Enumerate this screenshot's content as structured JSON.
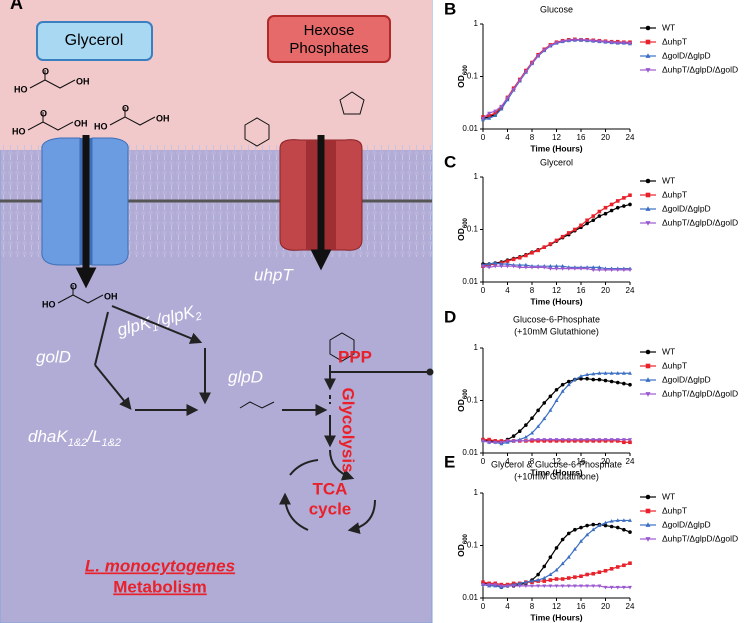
{
  "diagram": {
    "panel": "A",
    "substrate_1": "Glycerol",
    "substrate_2": [
      "Hexose",
      "Phosphates"
    ],
    "transporter": "uhpT",
    "enzyme_1": [
      "glpK",
      "1",
      "/glpK",
      "2"
    ],
    "enzyme_2": "golD",
    "enzyme_3": "glpD",
    "enzyme_4": [
      "dhaK",
      "1&2",
      "/L",
      "1&2"
    ],
    "pathway_1": "PPP",
    "pathway_2": "Glycolysis",
    "pathway_3": [
      "TCA",
      "cycle"
    ],
    "caption": [
      "L. monocytogenes",
      "Metabolism"
    ],
    "atoms": [
      "HO",
      "O",
      "OH"
    ]
  },
  "chart_data": [
    {
      "type": "line",
      "panel": "B",
      "title": "Glucose",
      "x_label": "Time (Hours)",
      "y_label": "OD",
      "y_label_sub": "600",
      "log_y": true,
      "x": [
        0,
        1,
        2,
        3,
        4,
        5,
        6,
        7,
        8,
        9,
        10,
        11,
        12,
        13,
        14,
        15,
        16,
        17,
        18,
        19,
        20,
        21,
        22,
        23,
        24
      ],
      "xlim": [
        0,
        24
      ],
      "xticks": [
        0,
        4,
        8,
        12,
        16,
        20,
        24
      ],
      "ylim": [
        0.01,
        1
      ],
      "yticks": [
        0.01,
        0.1,
        1
      ],
      "series": [
        {
          "name": "WT",
          "color": "#000000",
          "marker": "circle",
          "values": [
            0.016,
            0.017,
            0.019,
            0.025,
            0.038,
            0.058,
            0.085,
            0.125,
            0.18,
            0.25,
            0.32,
            0.39,
            0.44,
            0.47,
            0.49,
            0.5,
            0.5,
            0.49,
            0.48,
            0.47,
            0.46,
            0.45,
            0.44,
            0.44,
            0.43
          ]
        },
        {
          "name": "ΔuhpT",
          "color": "#e8212a",
          "marker": "square",
          "values": [
            0.017,
            0.018,
            0.02,
            0.026,
            0.04,
            0.06,
            0.088,
            0.13,
            0.185,
            0.26,
            0.33,
            0.4,
            0.45,
            0.48,
            0.5,
            0.51,
            0.5,
            0.5,
            0.49,
            0.48,
            0.47,
            0.46,
            0.46,
            0.45,
            0.45
          ]
        },
        {
          "name": "ΔgolD/ΔglpD",
          "color": "#3b6fc4",
          "marker": "triangle",
          "values": [
            0.015,
            0.016,
            0.018,
            0.024,
            0.036,
            0.055,
            0.082,
            0.12,
            0.175,
            0.245,
            0.31,
            0.38,
            0.43,
            0.46,
            0.48,
            0.49,
            0.49,
            0.48,
            0.47,
            0.46,
            0.45,
            0.44,
            0.43,
            0.43,
            0.42
          ]
        },
        {
          "name": "ΔuhpT/ΔglpD/ΔgolD",
          "color": "#9b59d0",
          "marker": "down",
          "values": [
            0.016,
            0.02,
            0.022,
            0.027,
            0.039,
            0.057,
            0.085,
            0.125,
            0.18,
            0.25,
            0.32,
            0.39,
            0.44,
            0.47,
            0.49,
            0.5,
            0.5,
            0.49,
            0.48,
            0.47,
            0.46,
            0.45,
            0.44,
            0.44,
            0.43
          ]
        }
      ]
    },
    {
      "type": "line",
      "panel": "C",
      "title": "Glycerol",
      "x_label": "Time (Hours)",
      "y_label": "OD",
      "y_label_sub": "600",
      "log_y": true,
      "x": [
        0,
        1,
        2,
        3,
        4,
        5,
        6,
        7,
        8,
        9,
        10,
        11,
        12,
        13,
        14,
        15,
        16,
        17,
        18,
        19,
        20,
        21,
        22,
        23,
        24
      ],
      "xlim": [
        0,
        24
      ],
      "xticks": [
        0,
        4,
        8,
        12,
        16,
        20,
        24
      ],
      "ylim": [
        0.01,
        1
      ],
      "yticks": [
        0.01,
        0.1,
        1
      ],
      "series": [
        {
          "name": "WT",
          "color": "#000000",
          "marker": "circle",
          "values": [
            0.022,
            0.022,
            0.023,
            0.024,
            0.026,
            0.028,
            0.03,
            0.033,
            0.037,
            0.041,
            0.046,
            0.052,
            0.06,
            0.07,
            0.08,
            0.095,
            0.11,
            0.13,
            0.15,
            0.18,
            0.2,
            0.23,
            0.26,
            0.28,
            0.3
          ]
        },
        {
          "name": "ΔuhpT",
          "color": "#e8212a",
          "marker": "square",
          "values": [
            0.02,
            0.021,
            0.022,
            0.023,
            0.025,
            0.027,
            0.029,
            0.032,
            0.036,
            0.04,
            0.046,
            0.053,
            0.062,
            0.073,
            0.086,
            0.1,
            0.12,
            0.15,
            0.18,
            0.22,
            0.26,
            0.3,
            0.35,
            0.4,
            0.45
          ]
        },
        {
          "name": "ΔgolD/ΔglpD",
          "color": "#3b6fc4",
          "marker": "triangle",
          "values": [
            0.021,
            0.022,
            0.023,
            0.022,
            0.022,
            0.021,
            0.021,
            0.021,
            0.02,
            0.02,
            0.02,
            0.02,
            0.02,
            0.02,
            0.019,
            0.019,
            0.019,
            0.019,
            0.019,
            0.019,
            0.018,
            0.018,
            0.018,
            0.018,
            0.018
          ]
        },
        {
          "name": "ΔuhpT/ΔglpD/ΔgolD",
          "color": "#9b59d0",
          "marker": "down",
          "values": [
            0.02,
            0.019,
            0.02,
            0.02,
            0.02,
            0.02,
            0.019,
            0.019,
            0.019,
            0.019,
            0.019,
            0.018,
            0.018,
            0.018,
            0.018,
            0.018,
            0.018,
            0.018,
            0.017,
            0.017,
            0.017,
            0.017,
            0.017,
            0.017,
            0.017
          ]
        }
      ]
    },
    {
      "type": "line",
      "panel": "D",
      "title": "Glucose-6-Phosphate",
      "subtitle": "(+10mM Glutathione)",
      "x_label": "Time (Hours)",
      "y_label": "OD",
      "y_label_sub": "600",
      "log_y": true,
      "x": [
        0,
        1,
        2,
        3,
        4,
        5,
        6,
        7,
        8,
        9,
        10,
        11,
        12,
        13,
        14,
        15,
        16,
        17,
        18,
        19,
        20,
        21,
        22,
        23,
        24
      ],
      "xlim": [
        0,
        24
      ],
      "xticks": [
        0,
        4,
        8,
        12,
        16,
        20,
        24
      ],
      "ylim": [
        0.01,
        1
      ],
      "yticks": [
        0.01,
        0.1,
        1
      ],
      "series": [
        {
          "name": "WT",
          "color": "#000000",
          "marker": "circle",
          "values": [
            0.018,
            0.017,
            0.017,
            0.016,
            0.018,
            0.021,
            0.026,
            0.034,
            0.046,
            0.065,
            0.09,
            0.12,
            0.16,
            0.2,
            0.23,
            0.25,
            0.26,
            0.26,
            0.25,
            0.25,
            0.24,
            0.23,
            0.22,
            0.21,
            0.2
          ]
        },
        {
          "name": "ΔuhpT",
          "color": "#e8212a",
          "marker": "square",
          "values": [
            0.018,
            0.018,
            0.017,
            0.017,
            0.017,
            0.017,
            0.017,
            0.017,
            0.017,
            0.017,
            0.017,
            0.017,
            0.017,
            0.017,
            0.017,
            0.017,
            0.017,
            0.017,
            0.017,
            0.017,
            0.017,
            0.017,
            0.017,
            0.016,
            0.016
          ]
        },
        {
          "name": "ΔgolD/ΔglpD",
          "color": "#3b6fc4",
          "marker": "triangle",
          "values": [
            0.017,
            0.016,
            0.016,
            0.015,
            0.016,
            0.017,
            0.018,
            0.02,
            0.024,
            0.032,
            0.045,
            0.065,
            0.1,
            0.15,
            0.2,
            0.25,
            0.29,
            0.31,
            0.32,
            0.33,
            0.33,
            0.33,
            0.33,
            0.33,
            0.33
          ]
        },
        {
          "name": "ΔuhpT/ΔglpD/ΔgolD",
          "color": "#9b59d0",
          "marker": "down",
          "values": [
            0.017,
            0.016,
            0.016,
            0.016,
            0.017,
            0.017,
            0.017,
            0.017,
            0.018,
            0.018,
            0.018,
            0.018,
            0.018,
            0.018,
            0.018,
            0.018,
            0.018,
            0.018,
            0.018,
            0.018,
            0.018,
            0.018,
            0.018,
            0.018,
            0.018
          ]
        }
      ]
    },
    {
      "type": "line",
      "panel": "E",
      "title": "Glycerol & Glucose-6-Phosphate",
      "subtitle": "(+10mM Glutathione)",
      "x_label": "Time (Hours)",
      "y_label": "OD",
      "y_label_sub": "600",
      "log_y": true,
      "x": [
        0,
        1,
        2,
        3,
        4,
        5,
        6,
        7,
        8,
        9,
        10,
        11,
        12,
        13,
        14,
        15,
        16,
        17,
        18,
        19,
        20,
        21,
        22,
        23,
        24
      ],
      "xlim": [
        0,
        24
      ],
      "xticks": [
        0,
        4,
        8,
        12,
        16,
        20,
        24
      ],
      "ylim": [
        0.01,
        1
      ],
      "yticks": [
        0.01,
        0.1,
        1
      ],
      "series": [
        {
          "name": "WT",
          "color": "#000000",
          "marker": "circle",
          "values": [
            0.019,
            0.018,
            0.018,
            0.016,
            0.017,
            0.017,
            0.018,
            0.019,
            0.022,
            0.028,
            0.04,
            0.06,
            0.09,
            0.13,
            0.17,
            0.2,
            0.22,
            0.24,
            0.25,
            0.25,
            0.24,
            0.23,
            0.22,
            0.2,
            0.18
          ]
        },
        {
          "name": "ΔuhpT",
          "color": "#e8212a",
          "marker": "square",
          "values": [
            0.02,
            0.019,
            0.019,
            0.018,
            0.018,
            0.019,
            0.019,
            0.02,
            0.02,
            0.021,
            0.021,
            0.022,
            0.023,
            0.023,
            0.024,
            0.025,
            0.026,
            0.028,
            0.029,
            0.031,
            0.033,
            0.036,
            0.039,
            0.042,
            0.046
          ]
        },
        {
          "name": "ΔgolD/ΔglpD",
          "color": "#3b6fc4",
          "marker": "triangle",
          "values": [
            0.018,
            0.017,
            0.017,
            0.016,
            0.017,
            0.018,
            0.019,
            0.02,
            0.021,
            0.022,
            0.024,
            0.028,
            0.034,
            0.045,
            0.06,
            0.085,
            0.12,
            0.16,
            0.2,
            0.24,
            0.27,
            0.29,
            0.3,
            0.3,
            0.3
          ]
        },
        {
          "name": "ΔuhpT/ΔglpD/ΔgolD",
          "color": "#9b59d0",
          "marker": "down",
          "values": [
            0.018,
            0.018,
            0.018,
            0.017,
            0.017,
            0.017,
            0.017,
            0.017,
            0.017,
            0.017,
            0.017,
            0.017,
            0.017,
            0.017,
            0.017,
            0.017,
            0.017,
            0.017,
            0.017,
            0.017,
            0.016,
            0.016,
            0.016,
            0.016,
            0.016
          ]
        }
      ]
    }
  ]
}
